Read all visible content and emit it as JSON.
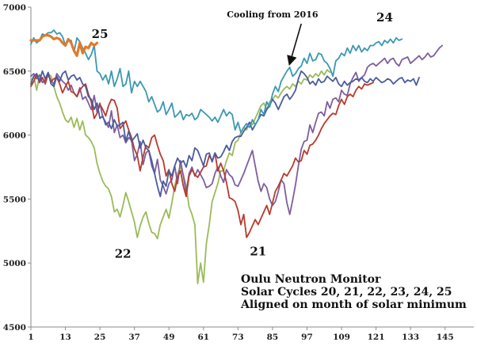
{
  "chart_data": {
    "type": "line",
    "title_lines": [
      "Oulu Neutron Monitor",
      "Solar Cycles 20, 21, 22, 23, 24, 25",
      "Aligned on month of solar minimum"
    ],
    "xlabel": "",
    "ylabel": "",
    "xlim": [
      1,
      155
    ],
    "ylim": [
      4500,
      7000
    ],
    "x_ticks": [
      1,
      13,
      25,
      37,
      49,
      61,
      73,
      85,
      97,
      109,
      121,
      133,
      145
    ],
    "y_ticks": [
      4500,
      5000,
      5500,
      6000,
      6500,
      7000
    ],
    "grid": false,
    "legend": "none",
    "annotation": {
      "text": "Cooling from 2016",
      "text_pos": [
        85,
        6920
      ],
      "arrow_from": [
        95,
        6870
      ],
      "arrow_to": [
        91,
        6560
      ]
    },
    "series_labels": [
      {
        "text": "25",
        "x": 25,
        "y": 6760
      },
      {
        "text": "24",
        "x": 124,
        "y": 6890
      },
      {
        "text": "22",
        "x": 33,
        "y": 5040
      },
      {
        "text": "21",
        "x": 80,
        "y": 5060
      }
    ],
    "series": [
      {
        "color": "#9bbb59",
        "x_start": 1,
        "values": [
          6420,
          6460,
          6350,
          6470,
          6440,
          6420,
          6480,
          6460,
          6380,
          6300,
          6250,
          6180,
          6120,
          6100,
          6140,
          6060,
          6130,
          6040,
          6110,
          6000,
          5980,
          5950,
          5900,
          5780,
          5700,
          5640,
          5600,
          5580,
          5520,
          5400,
          5420,
          5360,
          5450,
          5550,
          5480,
          5400,
          5320,
          5200,
          5290,
          5360,
          5400,
          5310,
          5240,
          5230,
          5190,
          5300,
          5360,
          5420,
          5350,
          5470,
          5600,
          5700,
          5750,
          5690,
          5600,
          5440,
          5380,
          5300,
          4840,
          5000,
          4850,
          5150,
          5300,
          5480,
          5550,
          5620,
          5720,
          5720,
          5800,
          5860,
          5840,
          5940,
          5960,
          6020,
          6060,
          6040,
          6100,
          6080,
          6130,
          6180,
          6230,
          6250,
          6200,
          6260,
          6280,
          6310,
          6290,
          6330,
          6360,
          6380,
          6360,
          6400,
          6380,
          6420,
          6400,
          6440,
          6430,
          6470,
          6450,
          6480,
          6460,
          6500,
          6470,
          6510,
          6490
        ]
      },
      {
        "color": "#7e5e9e",
        "x_start": 1,
        "values": [
          6460,
          6480,
          6440,
          6470,
          6410,
          6430,
          6470,
          6420,
          6400,
          6480,
          6450,
          6420,
          6400,
          6350,
          6390,
          6330,
          6300,
          6370,
          6280,
          6300,
          6250,
          6200,
          6310,
          6180,
          6250,
          6140,
          6100,
          6060,
          6190,
          6020,
          6080,
          5980,
          6000,
          5940,
          5980,
          5960,
          5800,
          5850,
          5950,
          5770,
          5860,
          5880,
          5760,
          5700,
          5810,
          5650,
          5600,
          5540,
          5620,
          5650,
          5760,
          5620,
          5800,
          5680,
          5550,
          5700,
          5750,
          5680,
          5730,
          5690,
          5650,
          5590,
          5600,
          5620,
          5700,
          5750,
          5680,
          5630,
          5730,
          5690,
          5670,
          5610,
          5600,
          5650,
          5700,
          5760,
          5820,
          5880,
          5760,
          5640,
          5560,
          5620,
          5590,
          5500,
          5450,
          5480,
          5560,
          5650,
          5620,
          5470,
          5380,
          5490,
          5610,
          5760,
          5890,
          5950,
          5960,
          6080,
          6020,
          6100,
          6170,
          6180,
          6150,
          6260,
          6210,
          6280,
          6290,
          6260,
          6350,
          6320,
          6310,
          6400,
          6450,
          6490,
          6420,
          6450,
          6470,
          6530,
          6550,
          6560,
          6540,
          6560,
          6580,
          6600,
          6560,
          6590,
          6600,
          6560,
          6540,
          6590,
          6600,
          6610,
          6560,
          6580,
          6600,
          6620,
          6590,
          6610,
          6640,
          6610,
          6620,
          6650,
          6680,
          6700
        ]
      },
      {
        "color": "#b83a2e",
        "x_start": 1,
        "values": [
          6380,
          6420,
          6470,
          6410,
          6450,
          6400,
          6480,
          6420,
          6440,
          6450,
          6400,
          6330,
          6380,
          6420,
          6340,
          6330,
          6300,
          6350,
          6380,
          6400,
          6320,
          6260,
          6130,
          6170,
          6240,
          6200,
          6150,
          6230,
          6280,
          6270,
          6210,
          6050,
          6080,
          6110,
          6040,
          5980,
          5890,
          5840,
          5720,
          5830,
          5920,
          5900,
          5980,
          6000,
          5920,
          5850,
          5800,
          5680,
          5730,
          5620,
          5560,
          5670,
          5720,
          5600,
          5520,
          5680,
          5730,
          5690,
          5670,
          5710,
          5750,
          5760,
          5840,
          5800,
          5860,
          5720,
          5780,
          5720,
          5630,
          5510,
          5500,
          5480,
          5410,
          5300,
          5380,
          5200,
          5240,
          5290,
          5340,
          5300,
          5350,
          5400,
          5450,
          5380,
          5470,
          5560,
          5600,
          5650,
          5700,
          5680,
          5720,
          5760,
          5820,
          5790,
          5800,
          5880,
          5850,
          5920,
          5930,
          5960,
          6000,
          6050,
          6090,
          6120,
          6150,
          6170,
          6160,
          6230,
          6280,
          6240,
          6300,
          6320,
          6300,
          6350,
          6380,
          6360,
          6400,
          6390,
          6400,
          6410
        ]
      },
      {
        "color": "#4a5c9c",
        "x_start": 1,
        "values": [
          6400,
          6460,
          6480,
          6420,
          6500,
          6440,
          6490,
          6400,
          6380,
          6460,
          6420,
          6480,
          6500,
          6430,
          6460,
          6470,
          6430,
          6450,
          6400,
          6380,
          6300,
          6280,
          6200,
          6250,
          6130,
          6150,
          6080,
          6100,
          6050,
          6120,
          6070,
          6080,
          6100,
          5950,
          6030,
          5950,
          5980,
          6010,
          5900,
          5960,
          5900,
          5880,
          5800,
          5700,
          5600,
          5520,
          5640,
          5600,
          5720,
          5680,
          5760,
          5820,
          5780,
          5800,
          5750,
          5840,
          5800,
          5900,
          5880,
          5820,
          5760,
          5850,
          5860,
          5790,
          5860,
          5820,
          5830,
          5870,
          5920,
          5880,
          5950,
          5980,
          5990,
          5990,
          6030,
          6060,
          6100,
          6040,
          6080,
          6120,
          6160,
          6150,
          6200,
          6230,
          6280,
          6250,
          6200,
          6250,
          6300,
          6320,
          6280,
          6310,
          6350,
          6440,
          6500,
          6480,
          6450,
          6400,
          6420,
          6390,
          6440,
          6410,
          6420,
          6460,
          6440,
          6420,
          6450,
          6400,
          6380,
          6420,
          6390,
          6410,
          6420,
          6440,
          6430,
          6450,
          6420,
          6410,
          6440,
          6420,
          6450,
          6430,
          6410,
          6420,
          6440,
          6430,
          6400,
          6420,
          6440,
          6450,
          6410,
          6430,
          6420,
          6440,
          6390,
          6450
        ]
      },
      {
        "color": "#3b98b3",
        "x_start": 1,
        "values": [
          6710,
          6760,
          6720,
          6740,
          6790,
          6780,
          6800,
          6800,
          6820,
          6790,
          6800,
          6770,
          6700,
          6740,
          6740,
          6650,
          6760,
          6730,
          6680,
          6640,
          6590,
          6630,
          6700,
          6500,
          6480,
          6430,
          6470,
          6400,
          6500,
          6380,
          6440,
          6520,
          6380,
          6400,
          6500,
          6330,
          6420,
          6380,
          6420,
          6380,
          6340,
          6260,
          6300,
          6240,
          6180,
          6200,
          6260,
          6160,
          6200,
          6250,
          6140,
          6160,
          6190,
          6120,
          6160,
          6150,
          6170,
          6120,
          6140,
          6200,
          6180,
          6160,
          6140,
          6110,
          6140,
          6100,
          6150,
          6200,
          6150,
          6180,
          6160,
          6040,
          6100,
          6020,
          6060,
          6090,
          6060,
          6120,
          6080,
          6120,
          6200,
          6160,
          6260,
          6220,
          6320,
          6380,
          6340,
          6420,
          6460,
          6500,
          6530,
          6460,
          6480,
          6520,
          6540,
          6600,
          6560,
          6640,
          6580,
          6590,
          6640,
          6630,
          6580,
          6560,
          6520,
          6460,
          6580,
          6600,
          6640,
          6620,
          6680,
          6640,
          6700,
          6660,
          6700,
          6650,
          6680,
          6660,
          6700,
          6700,
          6720,
          6730,
          6700,
          6740,
          6720,
          6750,
          6720,
          6760,
          6740,
          6750
        ]
      },
      {
        "color": "#e07a2e",
        "x_start": 1,
        "values": [
          6740,
          6740,
          6740,
          6740,
          6770,
          6780,
          6780,
          6770,
          6750,
          6760,
          6750,
          6720,
          6700,
          6750,
          6720,
          6660,
          6620,
          6720,
          6640,
          6690,
          6680,
          6720,
          6700,
          6720
        ]
      }
    ]
  }
}
